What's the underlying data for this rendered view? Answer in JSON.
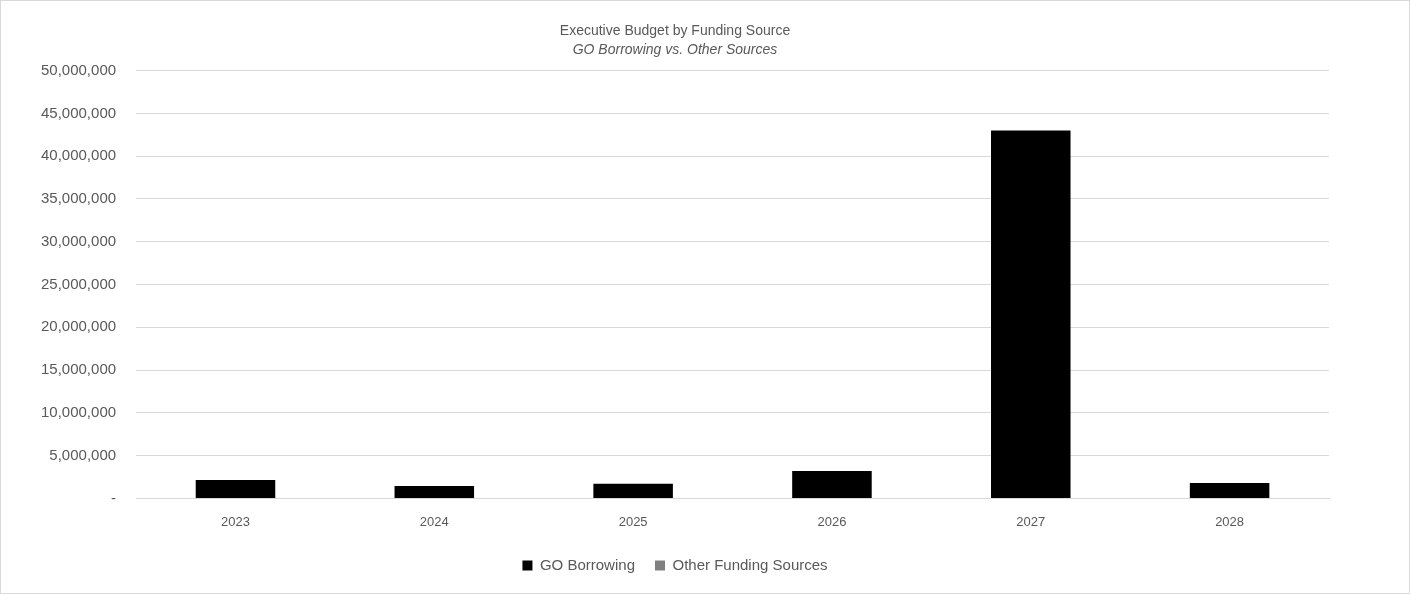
{
  "chart_data": {
    "type": "bar",
    "title": "Executive Budget by Funding Source",
    "subtitle": "GO Borrowing vs. Other Sources",
    "categories": [
      "2023",
      "2024",
      "2025",
      "2026",
      "2027",
      "2028"
    ],
    "stacked": true,
    "series": [
      {
        "name": "GO Borrowing",
        "color": "#000000",
        "values": [
          2150000,
          1450000,
          1700000,
          3200000,
          43000000,
          1800000
        ]
      },
      {
        "name": "Other Funding Sources",
        "color": "#808080",
        "values": [
          0,
          0,
          0,
          0,
          0,
          0
        ]
      }
    ],
    "ylim": [
      0,
      50000000
    ],
    "yticks": [
      {
        "value": 0,
        "label": "-"
      },
      {
        "value": 5000000,
        "label": "5,000,000"
      },
      {
        "value": 10000000,
        "label": "10,000,000"
      },
      {
        "value": 15000000,
        "label": "15,000,000"
      },
      {
        "value": 20000000,
        "label": "20,000,000"
      },
      {
        "value": 25000000,
        "label": "25,000,000"
      },
      {
        "value": 30000000,
        "label": "30,000,000"
      },
      {
        "value": 35000000,
        "label": "35,000,000"
      },
      {
        "value": 40000000,
        "label": "40,000,000"
      },
      {
        "value": 45000000,
        "label": "45,000,000"
      },
      {
        "value": 50000000,
        "label": "50,000,000"
      }
    ],
    "grid": "y",
    "legend": "bottom"
  }
}
